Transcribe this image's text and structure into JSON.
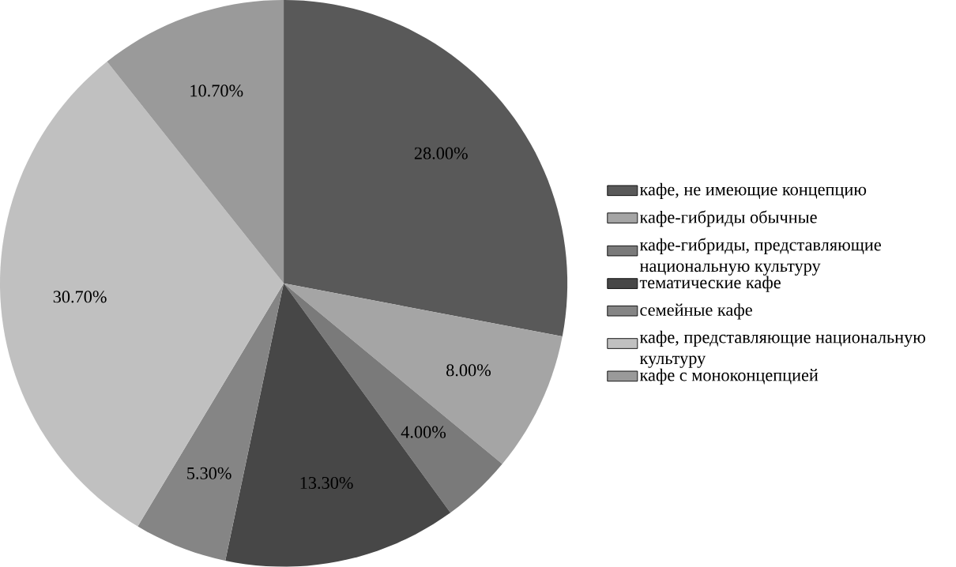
{
  "chart_data": {
    "type": "pie",
    "categories": [
      "кафе, не имеющие концепцию",
      "кафе-гибриды обычные",
      "кафе-гибриды, представляющие национальную культуру",
      "тематические кафе",
      "семейные кафе",
      "кафе, представляющие национальную культуру",
      "кафе с моноконцепцией"
    ],
    "values": [
      28.0,
      8.0,
      4.0,
      13.3,
      5.3,
      30.7,
      10.7
    ],
    "value_labels": [
      "28.00%",
      "8.00%",
      "4.00%",
      "13.30%",
      "5.30%",
      "30.70%",
      "10.70%"
    ],
    "colors": [
      "#595959",
      "#a5a5a5",
      "#7a7a7a",
      "#474747",
      "#858585",
      "#c0c0c0",
      "#9a9a9a"
    ],
    "legend": "right"
  }
}
